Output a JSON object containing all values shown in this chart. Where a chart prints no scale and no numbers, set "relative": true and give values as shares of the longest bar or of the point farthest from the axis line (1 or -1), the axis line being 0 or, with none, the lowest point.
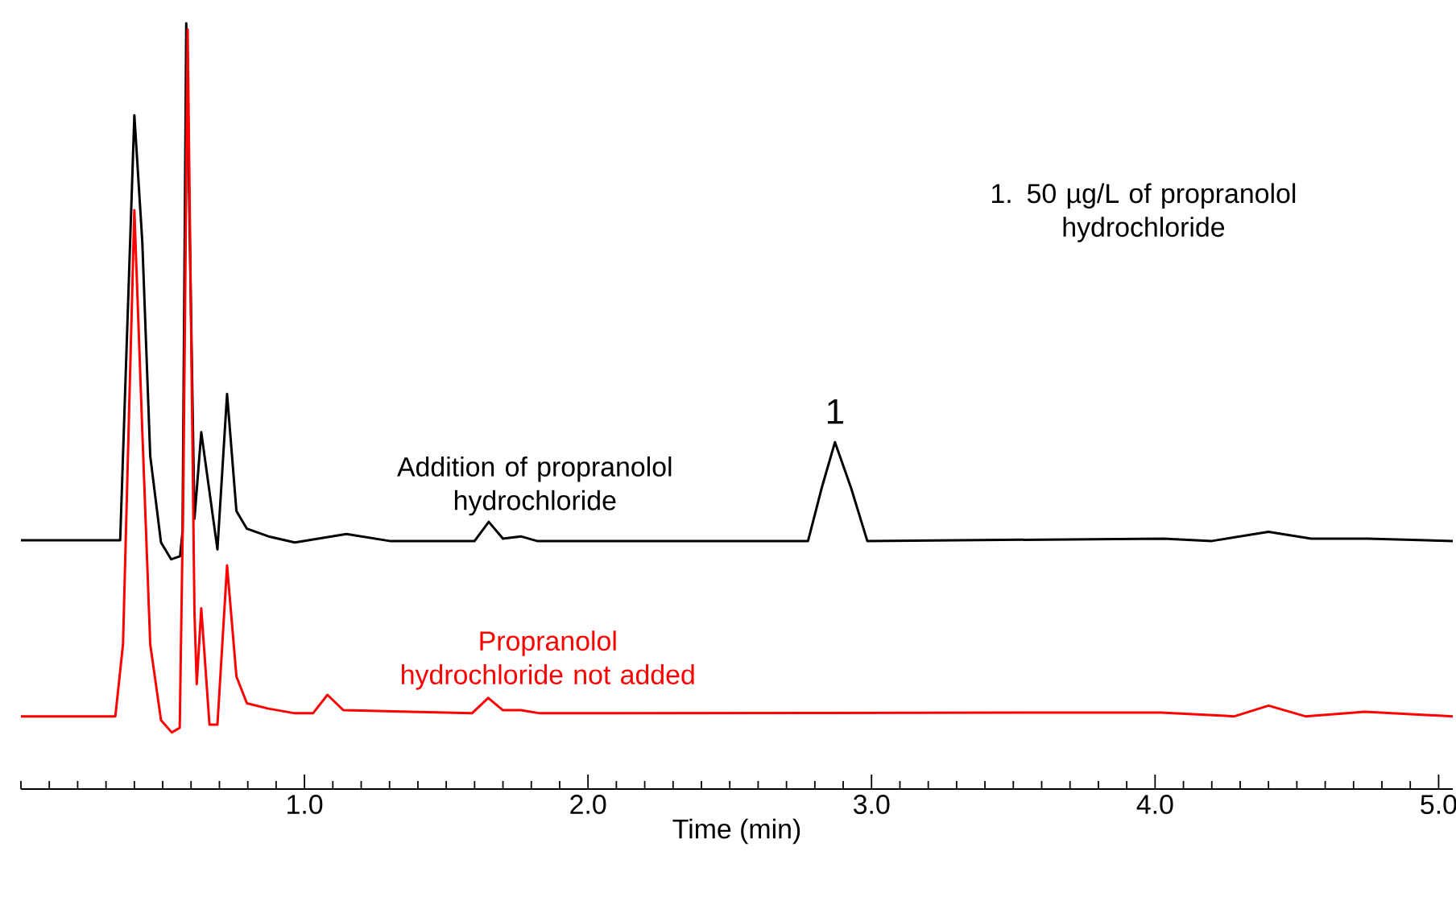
{
  "chart_data": {
    "type": "line",
    "relative": true,
    "xlabel": "Time (min)",
    "xlim": [
      0,
      5.05
    ],
    "xticks": [
      {
        "value": 0,
        "label": null
      },
      {
        "value": 0.1,
        "label": null
      },
      {
        "value": 0.2,
        "label": null
      },
      {
        "value": 0.3,
        "label": null
      },
      {
        "value": 0.4,
        "label": null
      },
      {
        "value": 0.5,
        "label": null
      },
      {
        "value": 0.6,
        "label": null
      },
      {
        "value": 0.7,
        "label": null
      },
      {
        "value": 0.8,
        "label": null
      },
      {
        "value": 0.9,
        "label": null
      },
      {
        "value": 1,
        "label": "1.0"
      },
      {
        "value": 1.1,
        "label": null
      },
      {
        "value": 1.2,
        "label": null
      },
      {
        "value": 1.3,
        "label": null
      },
      {
        "value": 1.4,
        "label": null
      },
      {
        "value": 1.5,
        "label": null
      },
      {
        "value": 1.6,
        "label": null
      },
      {
        "value": 1.7,
        "label": null
      },
      {
        "value": 1.8,
        "label": null
      },
      {
        "value": 1.9,
        "label": null
      },
      {
        "value": 2,
        "label": "2.0"
      },
      {
        "value": 2.1,
        "label": null
      },
      {
        "value": 2.2,
        "label": null
      },
      {
        "value": 2.3,
        "label": null
      },
      {
        "value": 2.4,
        "label": null
      },
      {
        "value": 2.5,
        "label": null
      },
      {
        "value": 2.6,
        "label": null
      },
      {
        "value": 2.7,
        "label": null
      },
      {
        "value": 2.8,
        "label": null
      },
      {
        "value": 2.9,
        "label": null
      },
      {
        "value": 3,
        "label": "3.0"
      },
      {
        "value": 3.1,
        "label": null
      },
      {
        "value": 3.2,
        "label": null
      },
      {
        "value": 3.3,
        "label": null
      },
      {
        "value": 3.4,
        "label": null
      },
      {
        "value": 3.5,
        "label": null
      },
      {
        "value": 3.6,
        "label": null
      },
      {
        "value": 3.7,
        "label": null
      },
      {
        "value": 3.8,
        "label": null
      },
      {
        "value": 3.9,
        "label": null
      },
      {
        "value": 4,
        "label": "4.0"
      },
      {
        "value": 4.1,
        "label": null
      },
      {
        "value": 4.2,
        "label": null
      },
      {
        "value": 4.3,
        "label": null
      },
      {
        "value": 4.4,
        "label": null
      },
      {
        "value": 4.5,
        "label": null
      },
      {
        "value": 4.6,
        "label": null
      },
      {
        "value": 4.7,
        "label": null
      },
      {
        "value": 4.8,
        "label": null
      },
      {
        "value": 4.9,
        "label": null
      },
      {
        "value": 5,
        "label": "5.0"
      }
    ],
    "tick_labels": "x",
    "grid": false,
    "legend": false,
    "marker": "none",
    "line_style": "solid",
    "annotations": [
      {
        "text": "1",
        "x": 2.871,
        "y": 0.453
      },
      "1. 50 µg/L of propranolol hydrochloride"
    ],
    "series": [
      {
        "name": "Addition of propranolol hydrochloride",
        "color": "#000000",
        "x": [
          0,
          0.35,
          0.4,
          0.428,
          0.456,
          0.494,
          0.53,
          0.561,
          0.57,
          0.583,
          0.612,
          0.636,
          0.693,
          0.727,
          0.76,
          0.797,
          0.873,
          0.966,
          1.148,
          1.3,
          1.6,
          1.65,
          1.7,
          1.763,
          1.82,
          2.776,
          2.824,
          2.871,
          2.928,
          2.985,
          4.03,
          4.2,
          4.4,
          4.55,
          4.75,
          5.05
        ],
        "values": [
          0.325,
          0.325,
          0.88,
          0.715,
          0.435,
          0.322,
          0.3,
          0.304,
          0.336,
          1.0,
          0.353,
          0.466,
          0.313,
          0.516,
          0.363,
          0.34,
          0.33,
          0.322,
          0.333,
          0.324,
          0.324,
          0.349,
          0.327,
          0.33,
          0.324,
          0.324,
          0.393,
          0.453,
          0.393,
          0.324,
          0.327,
          0.324,
          0.336,
          0.327,
          0.327,
          0.324
        ]
      },
      {
        "name": "Propranolol hydrochloride not added",
        "color": "#ff0000",
        "x": [
          0,
          0.333,
          0.36,
          0.4,
          0.428,
          0.456,
          0.494,
          0.532,
          0.56,
          0.573,
          0.588,
          0.6,
          0.612,
          0.62,
          0.636,
          0.665,
          0.693,
          0.727,
          0.76,
          0.797,
          0.873,
          0.966,
          1.03,
          1.081,
          1.137,
          1.591,
          1.648,
          1.7,
          1.763,
          1.83,
          4.02,
          4.28,
          4.4,
          4.53,
          4.74,
          5.05
        ],
        "values": [
          0.095,
          0.095,
          0.189,
          0.756,
          0.468,
          0.189,
          0.09,
          0.074,
          0.08,
          0.399,
          0.992,
          0.609,
          0.231,
          0.137,
          0.236,
          0.084,
          0.084,
          0.292,
          0.147,
          0.112,
          0.105,
          0.099,
          0.099,
          0.123,
          0.103,
          0.099,
          0.119,
          0.103,
          0.103,
          0.099,
          0.1,
          0.095,
          0.109,
          0.095,
          0.101,
          0.095
        ]
      }
    ]
  }
}
